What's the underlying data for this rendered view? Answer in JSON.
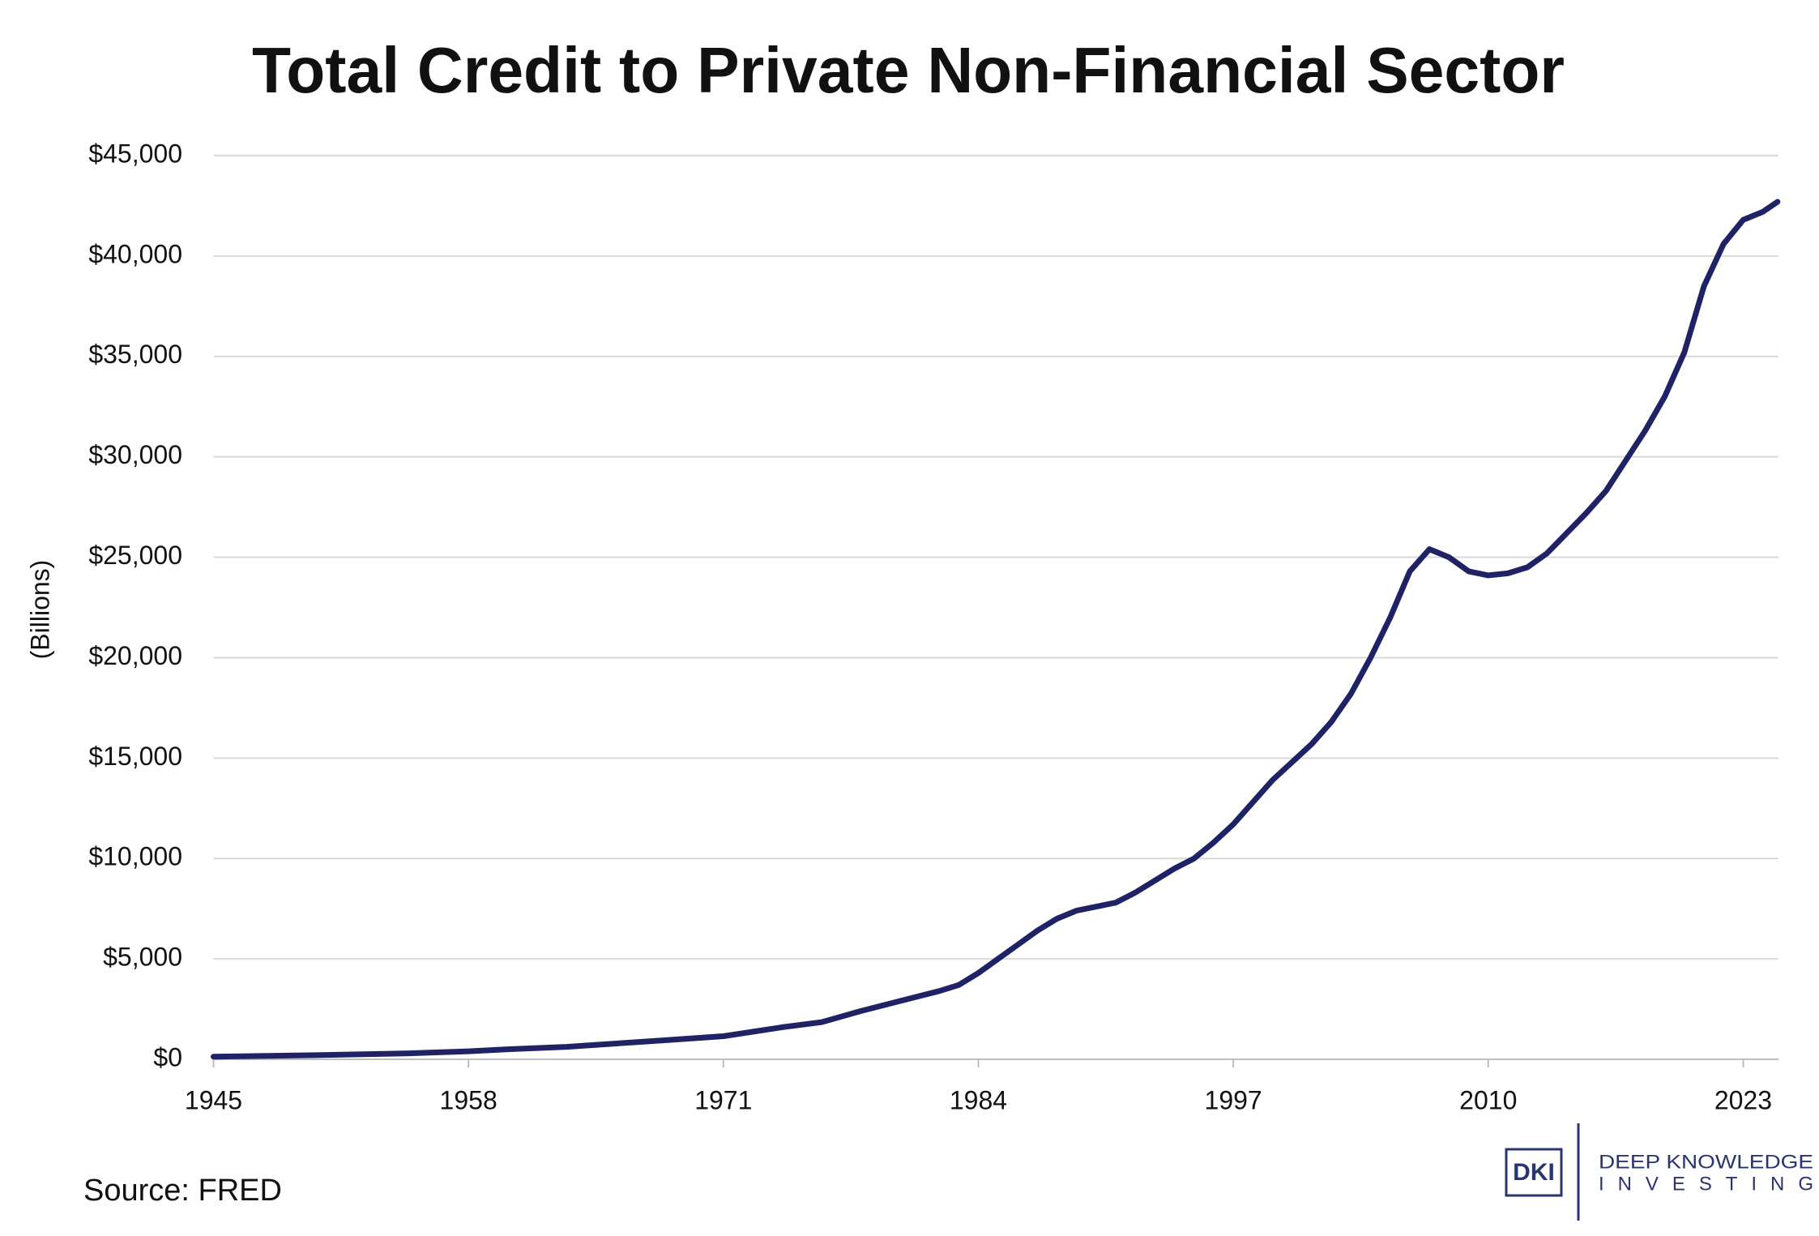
{
  "chart_data": {
    "type": "line",
    "title": "Total Credit to Private Non-Financial Sector",
    "y_label": "(Billions)",
    "source": "Source: FRED",
    "x": [
      1945,
      1950,
      1955,
      1958,
      1960,
      1963,
      1965,
      1968,
      1971,
      1974,
      1976,
      1978,
      1980,
      1982,
      1983,
      1984,
      1985,
      1986,
      1987,
      1988,
      1989,
      1990,
      1991,
      1992,
      1993,
      1994,
      1995,
      1996,
      1997,
      1998,
      1999,
      2000,
      2001,
      2002,
      2003,
      2004,
      2005,
      2006,
      2007,
      2008,
      2009,
      2010,
      2011,
      2012,
      2013,
      2014,
      2015,
      2016,
      2017,
      2018,
      2019,
      2020,
      2021,
      2022,
      2023,
      2024,
      2024.75
    ],
    "series": [
      {
        "name": "Total Credit",
        "color": "#1f2366",
        "values": [
          130,
          200,
          300,
          400,
          500,
          620,
          750,
          950,
          1150,
          1600,
          1850,
          2400,
          2900,
          3400,
          3700,
          4300,
          5000,
          5700,
          6400,
          7000,
          7400,
          7600,
          7800,
          8300,
          8900,
          9500,
          10000,
          10800,
          11700,
          12800,
          13900,
          14800,
          15700,
          16800,
          18200,
          20000,
          22000,
          24300,
          25400,
          25000,
          24300,
          24100,
          24200,
          24500,
          25200,
          26200,
          27200,
          28300,
          29800,
          31300,
          33000,
          35200,
          38500,
          40600,
          41800,
          42200,
          42700
        ]
      }
    ],
    "xlim": [
      1945,
      2024.8
    ],
    "xticks": [
      1945,
      1958,
      1971,
      1984,
      1997,
      2010,
      2023
    ],
    "ylim": [
      0,
      45000
    ],
    "yticks": [
      {
        "value": 0,
        "label": "$0"
      },
      {
        "value": 5000,
        "label": "$5,000"
      },
      {
        "value": 10000,
        "label": "$10,000"
      },
      {
        "value": 15000,
        "label": "$15,000"
      },
      {
        "value": 20000,
        "label": "$20,000"
      },
      {
        "value": 25000,
        "label": "$25,000"
      },
      {
        "value": 30000,
        "label": "$30,000"
      },
      {
        "value": 35000,
        "label": "$35,000"
      },
      {
        "value": 40000,
        "label": "$40,000"
      },
      {
        "value": 45000,
        "label": "$45,000"
      }
    ],
    "grid": true
  },
  "logo": {
    "mark": "DKI",
    "line1": "DEEP KNOWLEDGE",
    "line2": "INVESTING"
  }
}
